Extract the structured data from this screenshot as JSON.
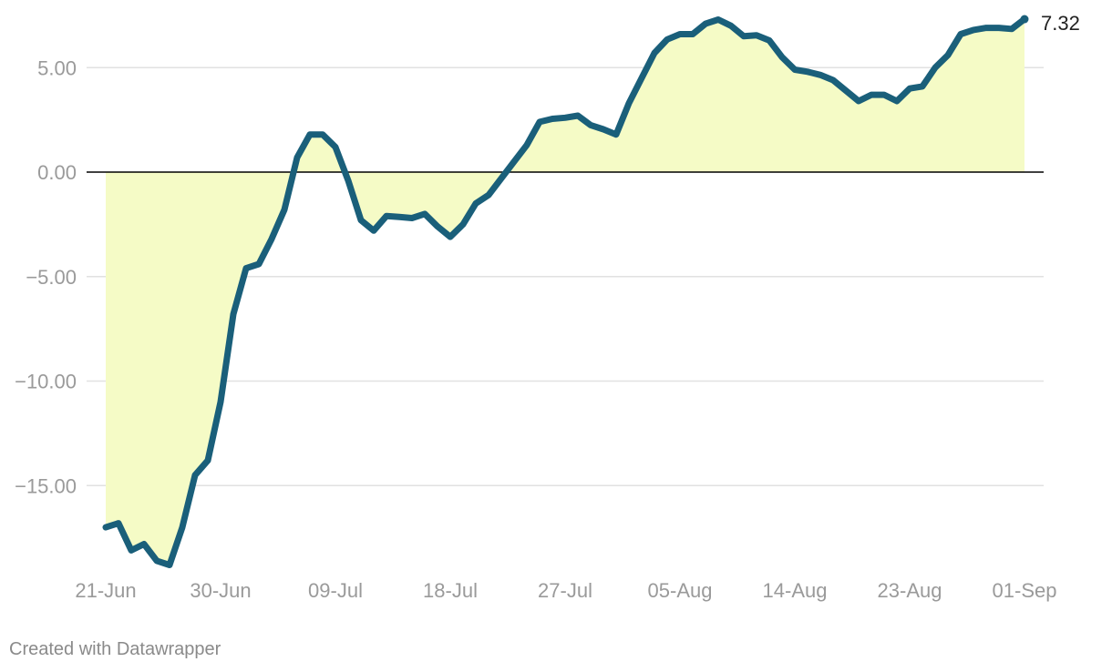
{
  "chart_data": {
    "type": "area",
    "x_start": "21-Jun",
    "x_tick_labels": [
      "21-Jun",
      "30-Jun",
      "09-Jul",
      "18-Jul",
      "27-Jul",
      "05-Aug",
      "14-Aug",
      "23-Aug",
      "01-Sep"
    ],
    "y_tick_labels": [
      "5.00",
      "0.00",
      "−5.00",
      "−10.00",
      "−15.00"
    ],
    "y_ticks": [
      5,
      0,
      -5,
      -10,
      -15
    ],
    "ylim": [
      -19.2,
      7.7
    ],
    "series": [
      {
        "dates": [
          "21-Jun",
          "22-Jun",
          "23-Jun",
          "24-Jun",
          "25-Jun",
          "26-Jun",
          "27-Jun",
          "28-Jun",
          "29-Jun",
          "30-Jun",
          "01-Jul",
          "02-Jul",
          "03-Jul",
          "04-Jul",
          "05-Jul",
          "06-Jul",
          "07-Jul",
          "08-Jul",
          "09-Jul",
          "10-Jul",
          "11-Jul",
          "12-Jul",
          "13-Jul",
          "14-Jul",
          "15-Jul",
          "16-Jul",
          "17-Jul",
          "18-Jul",
          "19-Jul",
          "20-Jul",
          "21-Jul",
          "22-Jul",
          "23-Jul",
          "24-Jul",
          "25-Jul",
          "26-Jul",
          "27-Jul",
          "28-Jul",
          "29-Jul",
          "30-Jul",
          "31-Jul",
          "01-Aug",
          "02-Aug",
          "03-Aug",
          "04-Aug",
          "05-Aug",
          "06-Aug",
          "07-Aug",
          "08-Aug",
          "09-Aug",
          "10-Aug",
          "11-Aug",
          "12-Aug",
          "13-Aug",
          "14-Aug",
          "15-Aug",
          "16-Aug",
          "17-Aug",
          "18-Aug",
          "19-Aug",
          "20-Aug",
          "21-Aug",
          "22-Aug",
          "23-Aug",
          "24-Aug",
          "25-Aug",
          "26-Aug",
          "27-Aug",
          "28-Aug",
          "29-Aug",
          "30-Aug",
          "31-Aug",
          "01-Sep"
        ],
        "values": [
          -17.0,
          -16.8,
          -18.1,
          -17.8,
          -18.6,
          -18.8,
          -17.0,
          -14.5,
          -13.8,
          -11.0,
          -6.8,
          -4.6,
          -4.4,
          -3.2,
          -1.8,
          0.7,
          1.8,
          1.8,
          1.2,
          -0.4,
          -2.3,
          -2.8,
          -2.1,
          -2.15,
          -2.2,
          -2.0,
          -2.6,
          -3.1,
          -2.5,
          -1.5,
          -1.1,
          -0.3,
          0.5,
          1.3,
          2.4,
          2.55,
          2.6,
          2.7,
          2.25,
          2.05,
          1.8,
          3.3,
          4.5,
          5.7,
          6.35,
          6.6,
          6.6,
          7.1,
          7.3,
          7.0,
          6.5,
          6.55,
          6.3,
          5.5,
          4.9,
          4.8,
          4.65,
          4.4,
          3.9,
          3.4,
          3.7,
          3.7,
          3.4,
          4.0,
          4.1,
          5.0,
          5.6,
          6.6,
          6.8,
          6.9,
          6.9,
          6.85,
          7.32
        ]
      }
    ],
    "end_label": "7.32",
    "colors": {
      "line": "#1a5f7a",
      "area": "#f5fbc6",
      "grid": "#e1e1e1",
      "zero_line": "#000000",
      "tick_text": "#9a9a9a"
    },
    "grid": true
  },
  "footer": {
    "credit": "Created with Datawrapper"
  }
}
